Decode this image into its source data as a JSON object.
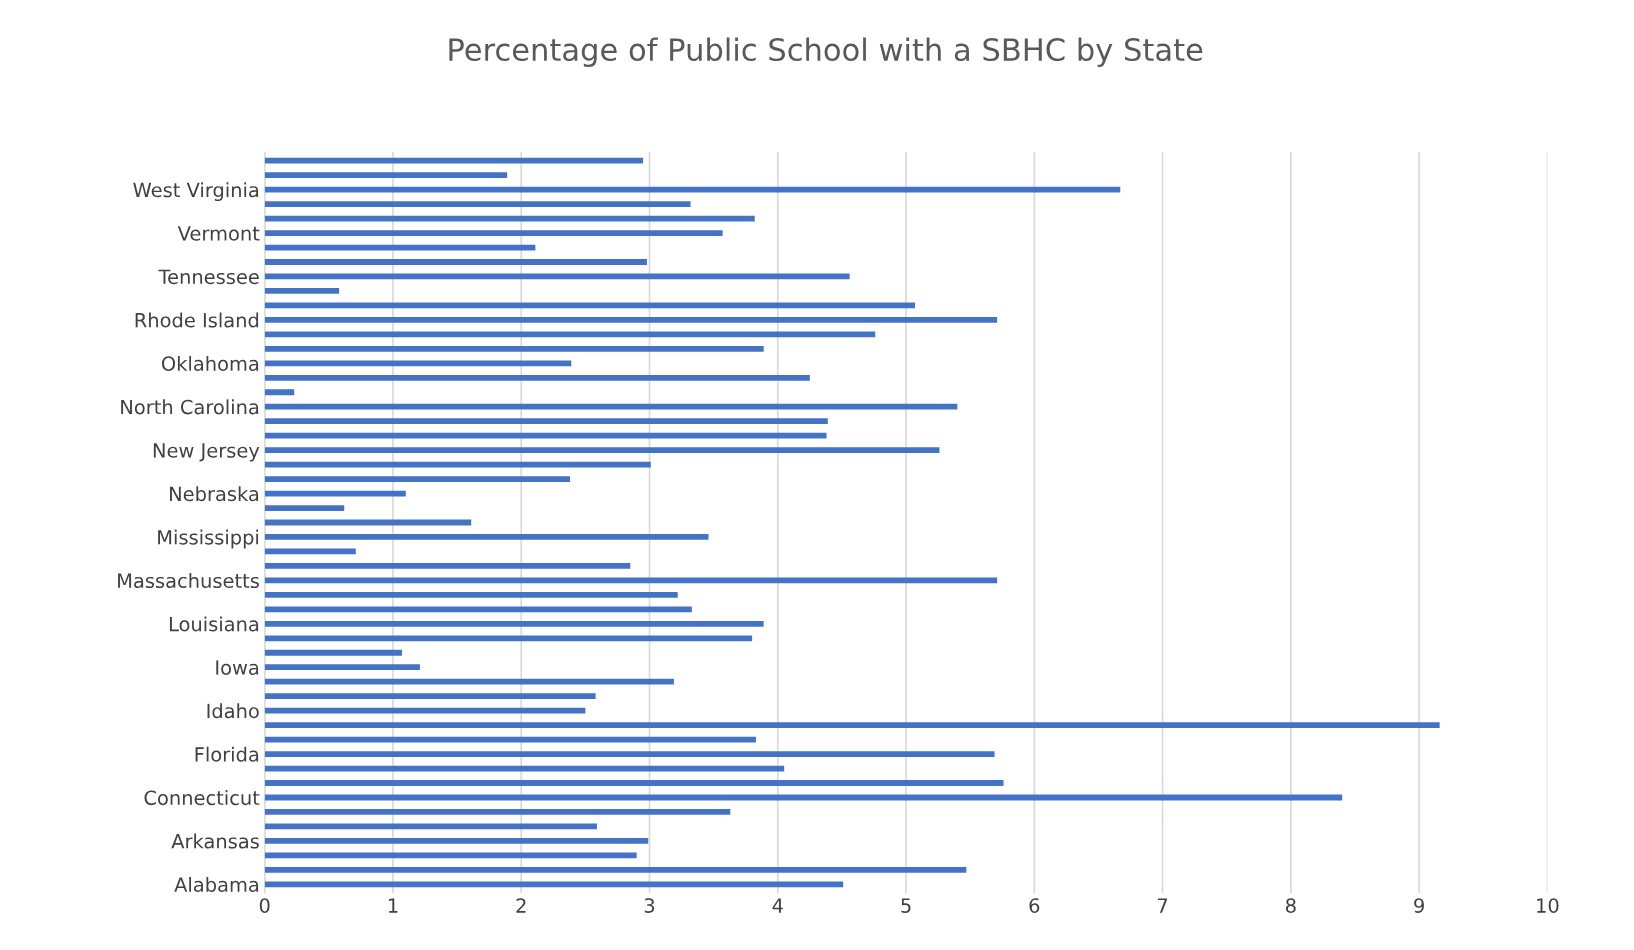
{
  "chart_data": {
    "type": "bar",
    "orientation": "horizontal",
    "title": "Percentage of Public School with a SBHC by State",
    "categories": [
      null,
      null,
      "West Virginia",
      null,
      null,
      "Vermont",
      null,
      null,
      "Tennessee",
      null,
      null,
      "Rhode Island",
      null,
      null,
      "Oklahoma",
      null,
      null,
      "North Carolina",
      null,
      null,
      "New Jersey",
      null,
      null,
      "Nebraska",
      null,
      null,
      "Mississippi",
      null,
      null,
      "Massachusetts",
      null,
      null,
      "Louisiana",
      null,
      null,
      "Iowa",
      null,
      null,
      "Idaho",
      null,
      null,
      "Florida",
      null,
      null,
      "Connecticut",
      null,
      null,
      "Arkansas",
      null,
      null,
      "Alabama"
    ],
    "values": [
      2.95,
      1.89,
      6.67,
      3.32,
      3.82,
      3.57,
      2.11,
      2.98,
      4.56,
      0.58,
      5.07,
      5.71,
      4.76,
      3.89,
      2.39,
      4.25,
      0.23,
      5.4,
      4.39,
      4.38,
      5.26,
      3.01,
      2.38,
      1.1,
      0.62,
      1.61,
      3.46,
      0.71,
      2.85,
      5.71,
      3.22,
      3.33,
      3.89,
      3.8,
      1.07,
      1.21,
      3.19,
      2.58,
      2.5,
      9.16,
      3.83,
      5.69,
      4.05,
      5.76,
      8.4,
      3.63,
      2.59,
      2.99,
      2.9,
      5.47,
      4.51
    ],
    "color": "#4472c4",
    "xlim": [
      0,
      10
    ],
    "xticks": [
      0,
      1,
      2,
      3,
      4,
      5,
      6,
      7,
      8,
      9,
      10
    ],
    "grid": "x"
  }
}
